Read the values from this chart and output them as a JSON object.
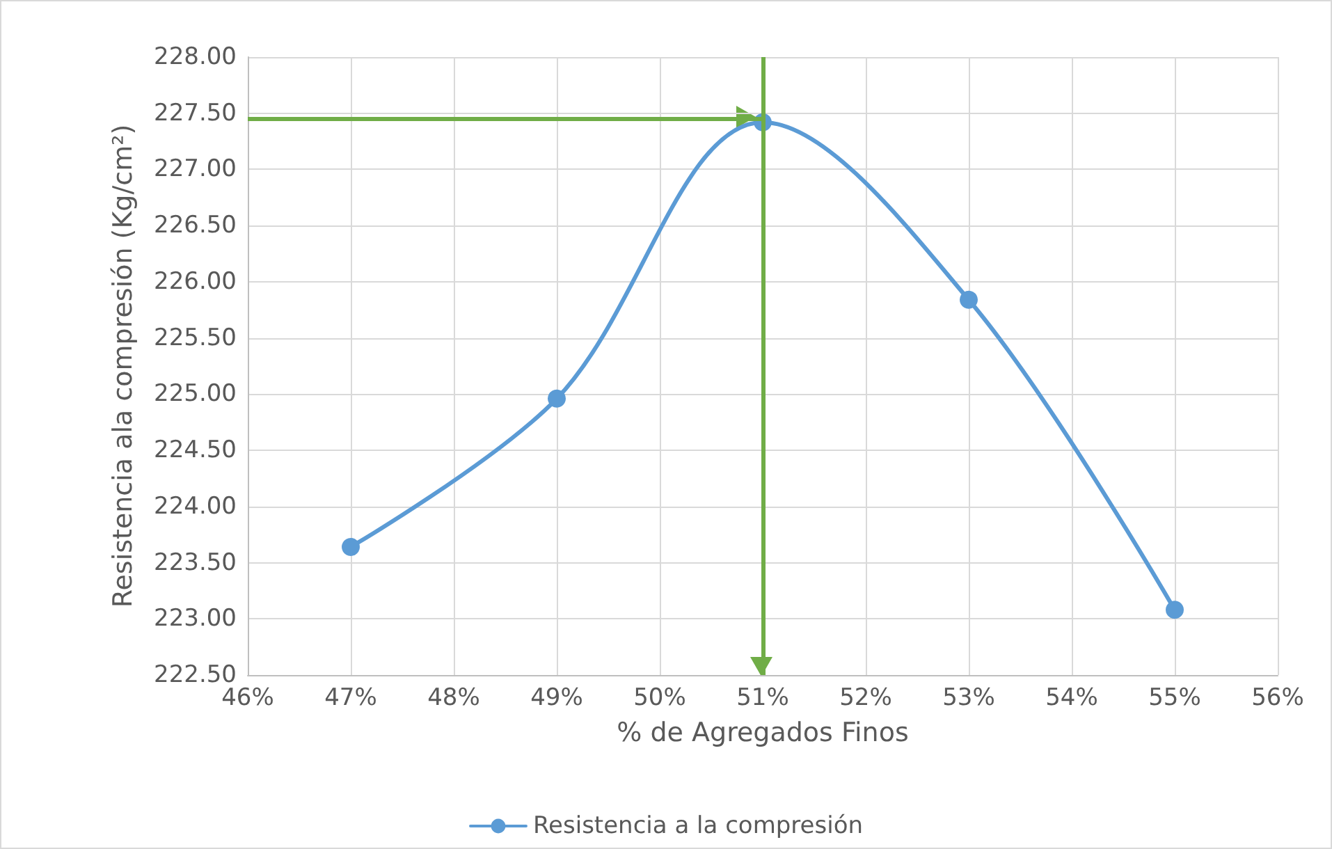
{
  "chart_data": {
    "type": "line",
    "xlabel": "% de Agregados Finos",
    "ylabel": "Resistencia ala compresión (Kg/cm²)",
    "x": [
      47,
      49,
      51,
      53,
      55
    ],
    "series": [
      {
        "name": "Resistencia a la compresión",
        "color": "#5b9bd5",
        "values": [
          223.64,
          224.96,
          227.42,
          225.84,
          223.08
        ]
      }
    ],
    "xlim": [
      46,
      56
    ],
    "xticks": [
      {
        "value": 46,
        "label": "46%"
      },
      {
        "value": 47,
        "label": "47%"
      },
      {
        "value": 48,
        "label": "48%"
      },
      {
        "value": 49,
        "label": "49%"
      },
      {
        "value": 50,
        "label": "50%"
      },
      {
        "value": 51,
        "label": "51%"
      },
      {
        "value": 52,
        "label": "52%"
      },
      {
        "value": 53,
        "label": "53%"
      },
      {
        "value": 54,
        "label": "54%"
      },
      {
        "value": 55,
        "label": "55%"
      },
      {
        "value": 56,
        "label": "56%"
      }
    ],
    "ylim": [
      222.5,
      228
    ],
    "yticks": [
      {
        "value": 222.5,
        "label": "222.50"
      },
      {
        "value": 223,
        "label": "223.00"
      },
      {
        "value": 223.5,
        "label": "223.50"
      },
      {
        "value": 224,
        "label": "224.00"
      },
      {
        "value": 224.5,
        "label": "224.50"
      },
      {
        "value": 225,
        "label": "225.00"
      },
      {
        "value": 225.5,
        "label": "225.50"
      },
      {
        "value": 226,
        "label": "226.00"
      },
      {
        "value": 226.5,
        "label": "226.50"
      },
      {
        "value": 227,
        "label": "227.00"
      },
      {
        "value": 227.5,
        "label": "227.50"
      },
      {
        "value": 228,
        "label": "228.00"
      }
    ],
    "ref_lines": [
      {
        "axis": "y",
        "value": 227.45,
        "color": "#70ad47"
      },
      {
        "axis": "x",
        "value": 51,
        "color": "#70ad47"
      }
    ],
    "grid": true,
    "legend": "bottom",
    "marker": "circle",
    "line_style": "solid"
  }
}
